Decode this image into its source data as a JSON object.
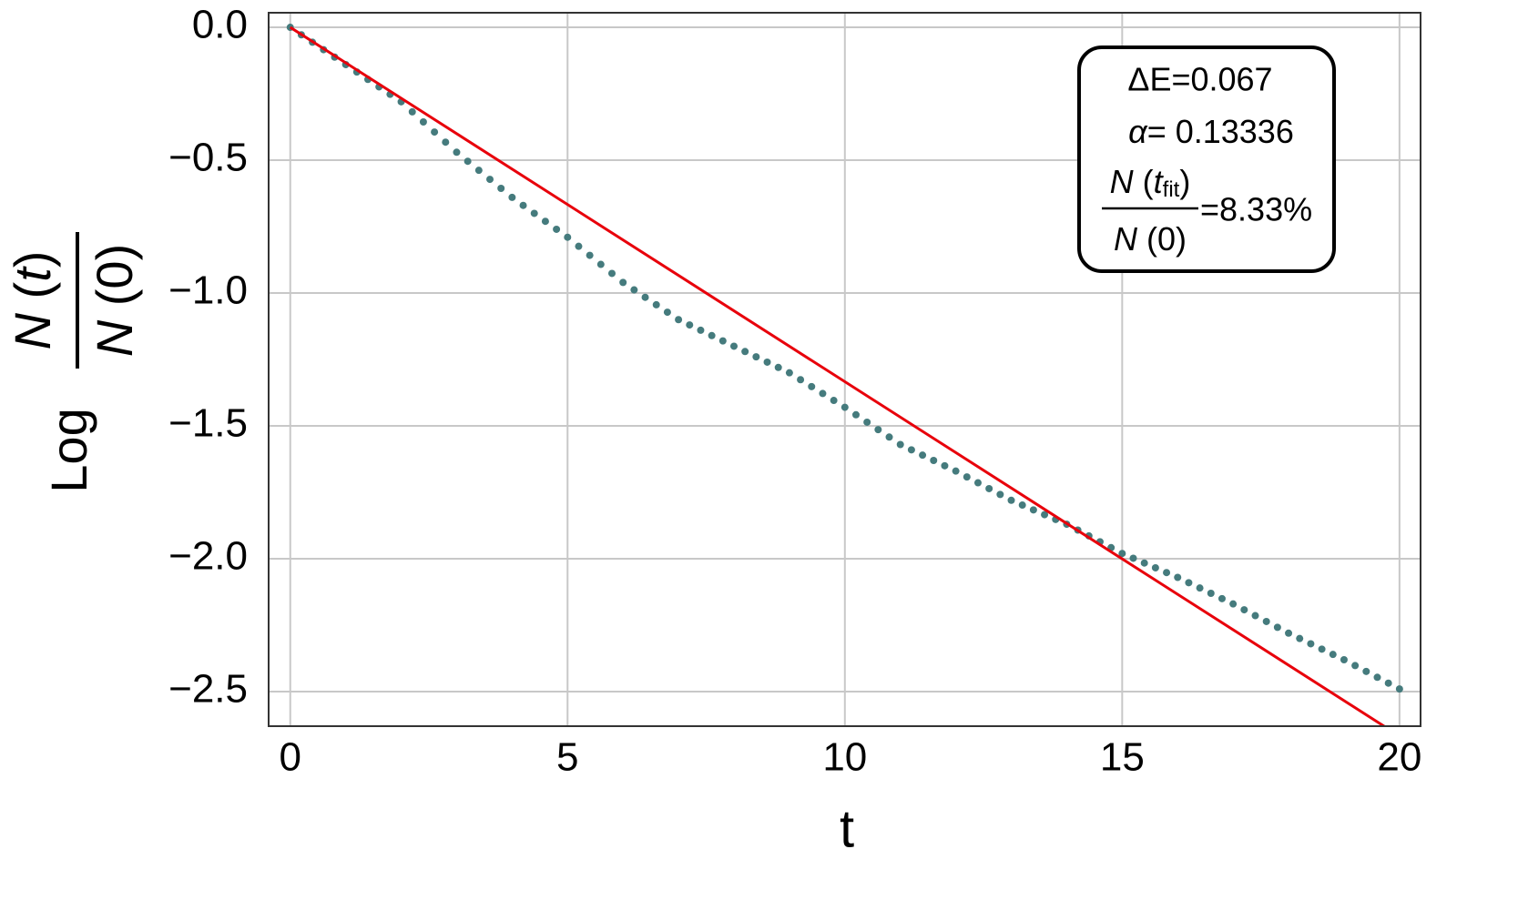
{
  "chart_data": {
    "type": "scatter",
    "x_label": "t",
    "y_label": {
      "prefix": "Log",
      "numerator": {
        "n": "N",
        "open": " (",
        "t": "t",
        "close": ")"
      },
      "denominator": {
        "n": "N",
        "rest": " (0)"
      }
    },
    "annotation": {
      "delta_e": "ΔE=0.067",
      "alpha_symbol": "α",
      "alpha_value": "= 0.13336",
      "ratio": {
        "numerator": {
          "n": "N",
          "open": " (",
          "t": "t",
          "sub": "fit",
          "close": ")"
        },
        "denominator": {
          "n": "N",
          "rest": " (0)"
        },
        "value": "=8.33%"
      }
    },
    "xlim": [
      -0.39,
      20.38
    ],
    "ylim": [
      -2.63,
      0.055
    ],
    "xticks": [
      0,
      5,
      10,
      15,
      20
    ],
    "yticks": [
      {
        "value": 0,
        "label": "0.0"
      },
      {
        "value": -0.5,
        "label": "−0.5"
      },
      {
        "value": -1,
        "label": "−1.0"
      },
      {
        "value": -1.5,
        "label": "−1.5"
      },
      {
        "value": -2,
        "label": "−2.0"
      },
      {
        "value": -2.5,
        "label": "−2.5"
      }
    ],
    "grid": true,
    "series": [
      {
        "mode": "markers",
        "color": "#457b7d",
        "x": [
          0,
          0.2,
          0.4,
          0.6,
          0.8,
          1,
          1.2,
          1.4,
          1.6,
          1.8,
          2,
          2.2,
          2.4,
          2.6,
          2.8,
          3,
          3.2,
          3.4,
          3.6,
          3.8,
          4,
          4.2,
          4.4,
          4.6,
          4.8,
          5,
          5.2,
          5.4,
          5.6,
          5.8,
          6,
          6.2,
          6.4,
          6.6,
          6.8,
          7,
          7.2,
          7.4,
          7.6,
          7.8,
          8,
          8.2,
          8.4,
          8.6,
          8.8,
          9,
          9.2,
          9.4,
          9.6,
          9.8,
          10,
          10.2,
          10.4,
          10.6,
          10.8,
          11,
          11.2,
          11.4,
          11.6,
          11.8,
          12,
          12.2,
          12.4,
          12.6,
          12.8,
          13,
          13.2,
          13.4,
          13.6,
          13.8,
          14,
          14.2,
          14.4,
          14.6,
          14.8,
          15,
          15.2,
          15.4,
          15.6,
          15.8,
          16,
          16.2,
          16.4,
          16.6,
          16.8,
          17,
          17.2,
          17.4,
          17.6,
          17.8,
          18,
          18.2,
          18.4,
          18.6,
          18.8,
          19,
          19.2,
          19.4,
          19.6,
          19.8,
          20
        ],
        "values": [
          0,
          -0.028,
          -0.056,
          -0.084,
          -0.112,
          -0.14,
          -0.168,
          -0.196,
          -0.224,
          -0.252,
          -0.28,
          -0.318,
          -0.356,
          -0.394,
          -0.432,
          -0.47,
          -0.504,
          -0.538,
          -0.572,
          -0.606,
          -0.64,
          -0.67,
          -0.7,
          -0.73,
          -0.76,
          -0.79,
          -0.824,
          -0.858,
          -0.892,
          -0.926,
          -0.96,
          -0.988,
          -1.016,
          -1.044,
          -1.072,
          -1.1,
          -1.12,
          -1.14,
          -1.16,
          -1.18,
          -1.2,
          -1.22,
          -1.24,
          -1.26,
          -1.28,
          -1.3,
          -1.326,
          -1.352,
          -1.378,
          -1.404,
          -1.43,
          -1.458,
          -1.486,
          -1.514,
          -1.542,
          -1.57,
          -1.59,
          -1.61,
          -1.63,
          -1.65,
          -1.67,
          -1.692,
          -1.714,
          -1.736,
          -1.758,
          -1.78,
          -1.798,
          -1.816,
          -1.834,
          -1.852,
          -1.87,
          -1.892,
          -1.914,
          -1.936,
          -1.958,
          -1.98,
          -1.998,
          -2.016,
          -2.034,
          -2.052,
          -2.07,
          -2.09,
          -2.11,
          -2.13,
          -2.15,
          -2.17,
          -2.192,
          -2.214,
          -2.236,
          -2.258,
          -2.28,
          -2.3,
          -2.32,
          -2.34,
          -2.36,
          -2.38,
          -2.402,
          -2.424,
          -2.446,
          -2.468,
          -2.49
        ]
      },
      {
        "mode": "line",
        "color": "#e8000b",
        "x": [
          0,
          20
        ],
        "values": [
          0,
          -2.6672
        ]
      }
    ]
  }
}
